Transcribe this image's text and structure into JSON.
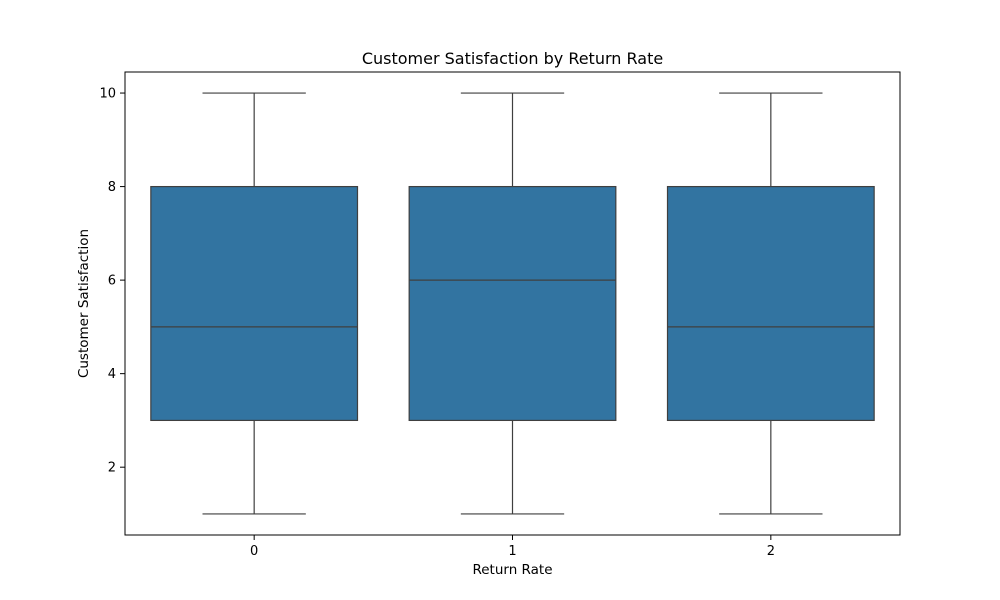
{
  "chart_data": {
    "type": "box",
    "title": "Customer Satisfaction by Return Rate",
    "xlabel": "Return Rate",
    "ylabel": "Customer Satisfaction",
    "ylim": [
      0.55,
      10.45
    ],
    "yticks": [
      2,
      4,
      6,
      8,
      10
    ],
    "grid": false,
    "box_color": "#3274a1",
    "line_color": "#3f3f3f",
    "categories": [
      "0",
      "1",
      "2"
    ],
    "boxes": [
      {
        "category": "0",
        "whisker_low": 1,
        "q1": 3,
        "median": 5,
        "q3": 8,
        "whisker_high": 10
      },
      {
        "category": "1",
        "whisker_low": 1,
        "q1": 3,
        "median": 6,
        "q3": 8,
        "whisker_high": 10
      },
      {
        "category": "2",
        "whisker_low": 1,
        "q1": 3,
        "median": 5,
        "q3": 8,
        "whisker_high": 10
      }
    ]
  }
}
